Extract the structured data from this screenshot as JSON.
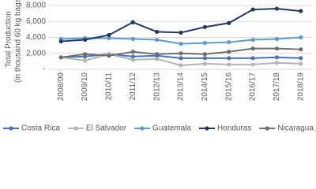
{
  "chart_data": {
    "type": "line",
    "y_label": [
      "Total Production",
      "(in thousand 60 kg bags)"
    ],
    "categories": [
      "2008/09",
      "2009/10",
      "2010/11",
      "2011/12",
      "2012/13",
      "2013/14",
      "2014/15",
      "2015/16",
      "2016/17",
      "2017/18",
      "2018/19"
    ],
    "series": [
      {
        "name": "Costa Rica",
        "color": "#4472c4",
        "values": [
          1500,
          1600,
          1900,
          1600,
          1700,
          1400,
          1400,
          1400,
          1400,
          1500,
          1400
        ]
      },
      {
        "name": "El Salvador",
        "color": "#b4b4b4",
        "values": [
          1500,
          1100,
          1900,
          1200,
          1300,
          500,
          700,
          600,
          600,
          800,
          700
        ]
      },
      {
        "name": "Guatemala",
        "color": "#5b9bd5",
        "values": [
          3800,
          3900,
          3900,
          3800,
          3700,
          3200,
          3300,
          3400,
          3700,
          3800,
          4000
        ]
      },
      {
        "name": "Honduras",
        "color": "#1f3864",
        "values": [
          3500,
          3700,
          4300,
          5900,
          4700,
          4600,
          5300,
          5800,
          7500,
          7600,
          7300
        ]
      },
      {
        "name": "Nicaragua",
        "color": "#6f6f6f",
        "values": [
          1500,
          1900,
          1700,
          2200,
          1900,
          2000,
          1900,
          2200,
          2600,
          2600,
          2500
        ]
      }
    ],
    "ylim": [
      0,
      8000
    ],
    "yticks": [
      {
        "value": 0,
        "label": "-"
      },
      {
        "value": 2000,
        "label": "2,000"
      },
      {
        "value": 4000,
        "label": "4,000"
      },
      {
        "value": 6000,
        "label": "6,000"
      },
      {
        "value": 8000,
        "label": "8,000"
      }
    ],
    "grid": true,
    "legend": "bottom"
  }
}
